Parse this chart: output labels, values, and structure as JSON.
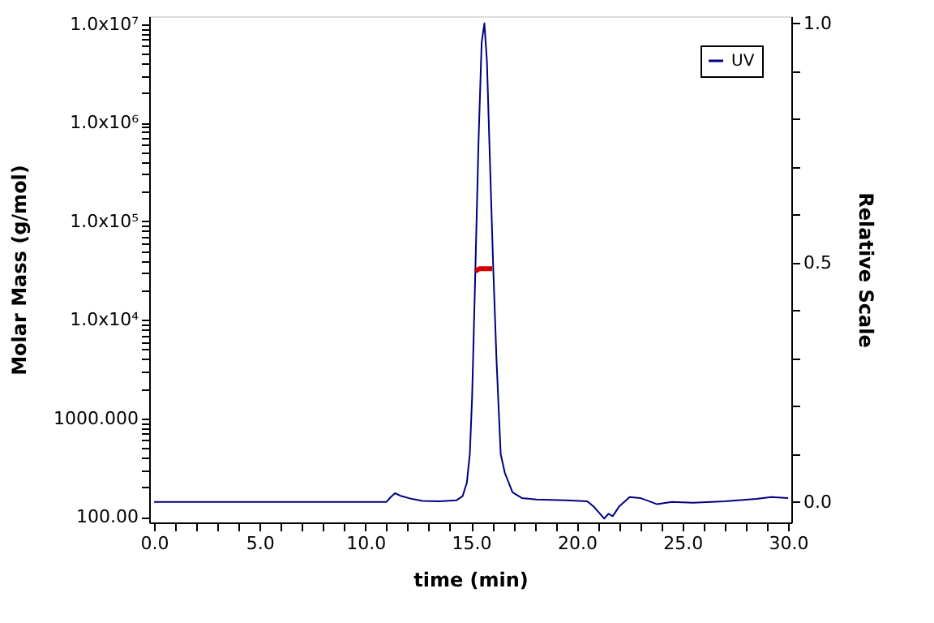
{
  "chart_data": {
    "type": "line",
    "xlabel": "time (min)",
    "ylabel": "Molar Mass (g/mol)",
    "y2label": "Relative Scale",
    "log": "y",
    "grid": false,
    "legend": "top right",
    "line_style": "solid",
    "xlim": [
      -0.23,
      30.15
    ],
    "xticks": [
      {
        "value": 0,
        "label": "0.0"
      },
      {
        "value": 1,
        "label": null
      },
      {
        "value": 2,
        "label": null
      },
      {
        "value": 3,
        "label": null
      },
      {
        "value": 4,
        "label": null
      },
      {
        "value": 5,
        "label": "5.0"
      },
      {
        "value": 6,
        "label": null
      },
      {
        "value": 7,
        "label": null
      },
      {
        "value": 8,
        "label": null
      },
      {
        "value": 9,
        "label": null
      },
      {
        "value": 10,
        "label": "10.0"
      },
      {
        "value": 11,
        "label": null
      },
      {
        "value": 12,
        "label": null
      },
      {
        "value": 13,
        "label": null
      },
      {
        "value": 14,
        "label": null
      },
      {
        "value": 15,
        "label": "15.0"
      },
      {
        "value": 16,
        "label": null
      },
      {
        "value": 17,
        "label": null
      },
      {
        "value": 18,
        "label": null
      },
      {
        "value": 19,
        "label": null
      },
      {
        "value": 20,
        "label": "20.0"
      },
      {
        "value": 21,
        "label": null
      },
      {
        "value": 22,
        "label": null
      },
      {
        "value": 23,
        "label": null
      },
      {
        "value": 24,
        "label": null
      },
      {
        "value": 25,
        "label": "25.0"
      },
      {
        "value": 26,
        "label": null
      },
      {
        "value": 27,
        "label": null
      },
      {
        "value": 28,
        "label": null
      },
      {
        "value": 29,
        "label": null
      },
      {
        "value": 30,
        "label": "30.0"
      }
    ],
    "ylim": [
      88,
      12000000
    ],
    "yticks": [
      {
        "value": 100,
        "label": "100.00"
      },
      {
        "value": 200,
        "label": null
      },
      {
        "value": 300,
        "label": null
      },
      {
        "value": 400,
        "label": null
      },
      {
        "value": 500,
        "label": null
      },
      {
        "value": 600,
        "label": null
      },
      {
        "value": 700,
        "label": null
      },
      {
        "value": 800,
        "label": null
      },
      {
        "value": 900,
        "label": null
      },
      {
        "value": 1000,
        "label": "1000.000"
      },
      {
        "value": 2000,
        "label": null
      },
      {
        "value": 3000,
        "label": null
      },
      {
        "value": 4000,
        "label": null
      },
      {
        "value": 5000,
        "label": null
      },
      {
        "value": 6000,
        "label": null
      },
      {
        "value": 7000,
        "label": null
      },
      {
        "value": 8000,
        "label": null
      },
      {
        "value": 9000,
        "label": null
      },
      {
        "value": 10000,
        "label": "1.0x10⁴"
      },
      {
        "value": 20000,
        "label": null
      },
      {
        "value": 30000,
        "label": null
      },
      {
        "value": 40000,
        "label": null
      },
      {
        "value": 50000,
        "label": null
      },
      {
        "value": 60000,
        "label": null
      },
      {
        "value": 70000,
        "label": null
      },
      {
        "value": 80000,
        "label": null
      },
      {
        "value": 90000,
        "label": null
      },
      {
        "value": 100000,
        "label": "1.0x10⁵"
      },
      {
        "value": 200000,
        "label": null
      },
      {
        "value": 300000,
        "label": null
      },
      {
        "value": 400000,
        "label": null
      },
      {
        "value": 500000,
        "label": null
      },
      {
        "value": 600000,
        "label": null
      },
      {
        "value": 700000,
        "label": null
      },
      {
        "value": 800000,
        "label": null
      },
      {
        "value": 900000,
        "label": null
      },
      {
        "value": 1000000,
        "label": "1.0x10⁶"
      },
      {
        "value": 2000000,
        "label": null
      },
      {
        "value": 3000000,
        "label": null
      },
      {
        "value": 4000000,
        "label": null
      },
      {
        "value": 5000000,
        "label": null
      },
      {
        "value": 6000000,
        "label": null
      },
      {
        "value": 7000000,
        "label": null
      },
      {
        "value": 8000000,
        "label": null
      },
      {
        "value": 9000000,
        "label": null
      },
      {
        "value": 10000000,
        "label": "1.0x10⁷"
      }
    ],
    "y2lim": [
      -0.043,
      1.015
    ],
    "y2ticks": [
      {
        "value": 0,
        "label": "0.0"
      },
      {
        "value": 0.1,
        "label": null
      },
      {
        "value": 0.2,
        "label": null
      },
      {
        "value": 0.3,
        "label": null
      },
      {
        "value": 0.4,
        "label": null
      },
      {
        "value": 0.5,
        "label": "0.5"
      },
      {
        "value": 0.6,
        "label": null
      },
      {
        "value": 0.7,
        "label": null
      },
      {
        "value": 0.8,
        "label": null
      },
      {
        "value": 0.9,
        "label": null
      },
      {
        "value": 1,
        "label": "1.0"
      }
    ],
    "series": [
      {
        "name": "UV",
        "color": "#000080",
        "axis": "y2",
        "x": [
          0,
          5,
          10,
          11.0,
          11.2,
          11.4,
          11.7,
          12.2,
          12.7,
          13.5,
          14.3,
          14.6,
          14.8,
          14.94,
          15.05,
          15.2,
          15.35,
          15.5,
          15.63,
          15.75,
          15.9,
          16.04,
          16.2,
          16.4,
          16.6,
          16.96,
          17.4,
          18.1,
          19.5,
          20.5,
          20.8,
          21.0,
          21.3,
          21.5,
          21.7,
          22.0,
          22.5,
          23.0,
          23.5,
          23.8,
          24.5,
          25.5,
          27,
          28.5,
          29.2,
          30
        ],
        "values": [
          0,
          0,
          0,
          0,
          0.01,
          0.018,
          0.012,
          0.006,
          0.002,
          0.001,
          0.003,
          0.012,
          0.04,
          0.1,
          0.22,
          0.48,
          0.75,
          0.96,
          1.0,
          0.92,
          0.7,
          0.5,
          0.3,
          0.1,
          0.06,
          0.02,
          0.008,
          0.005,
          0.003,
          0.001,
          -0.01,
          -0.02,
          -0.035,
          -0.025,
          -0.03,
          -0.01,
          0.01,
          0.008,
          0.0,
          -0.005,
          0.0,
          -0.002,
          0.001,
          0.006,
          0.01,
          0.008
        ]
      },
      {
        "color": "#d40000",
        "axis": "y",
        "x": [
          15.2,
          15.3,
          15.4,
          15.5,
          15.6,
          15.7,
          15.8,
          15.9,
          16.0
        ],
        "values": [
          31000,
          32000,
          33000,
          33000,
          33000,
          33000,
          33000,
          33000,
          33000
        ]
      }
    ]
  }
}
